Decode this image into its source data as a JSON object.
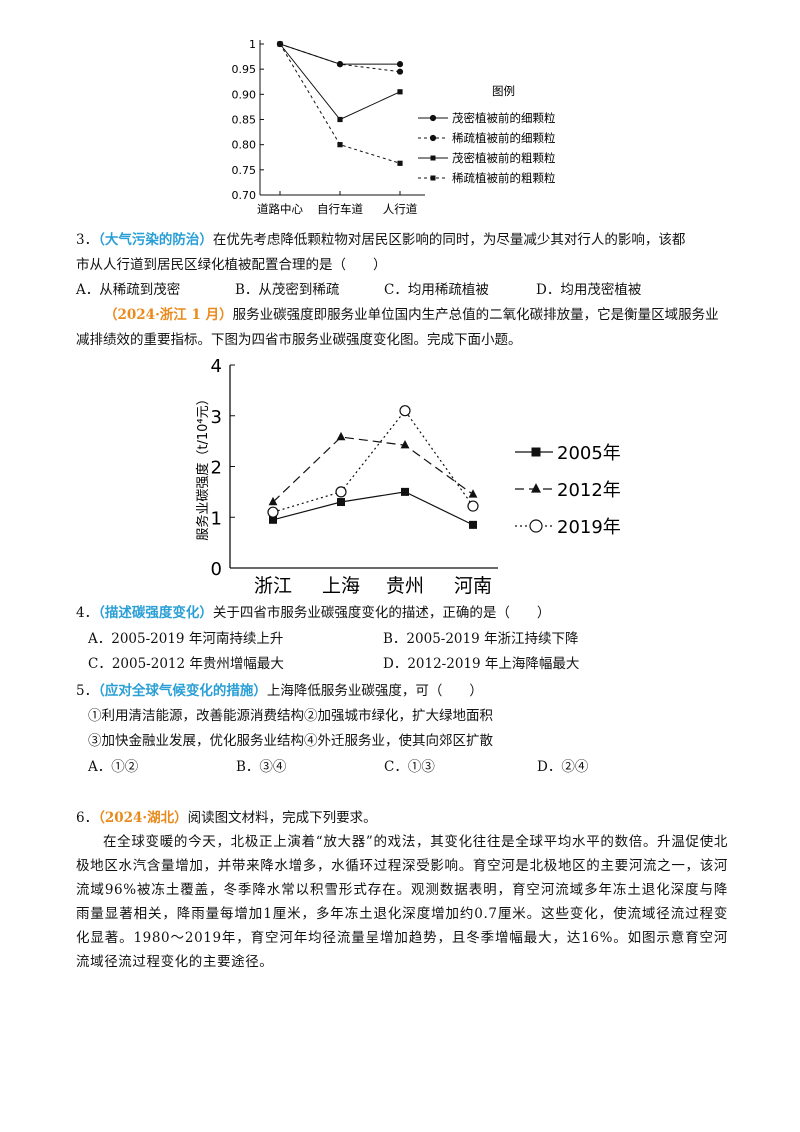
{
  "chart1": {
    "type": "line",
    "categories": [
      "道路中心",
      "自行车道",
      "人行道"
    ],
    "yticks": [
      "0.70",
      "0.75",
      "0.80",
      "0.85",
      "0.90",
      "0.95",
      "1"
    ],
    "ylim": [
      0.7,
      1.0
    ],
    "legend_title": "图例",
    "series": [
      {
        "name": "茂密植被前的细颗粒",
        "values": [
          1.0,
          0.96,
          0.96
        ],
        "dash": false,
        "marker": "circle"
      },
      {
        "name": "稀疏植被前的细颗粒",
        "values": [
          1.0,
          0.96,
          0.945
        ],
        "dash": true,
        "marker": "circle"
      },
      {
        "name": "茂密植被前的粗颗粒",
        "values": [
          1.0,
          0.85,
          0.905
        ],
        "dash": false,
        "marker": "square"
      },
      {
        "name": "稀疏植被前的粗颗粒",
        "values": [
          1.0,
          0.8,
          0.763
        ],
        "dash": true,
        "marker": "square"
      }
    ]
  },
  "q3": {
    "number": "3．",
    "tag": "（大气污染的防治）",
    "line1": "在优先考虑降低颗粒物对居民区影响的同时，为尽量减少其对行人的影响，该都",
    "line2": "市从人行道到居民区绿化植被配置合理的是（　　）",
    "optA": "A．从稀疏到茂密",
    "optB": "B．从茂密到稀疏",
    "optC": "C．均用稀疏植被",
    "optD": "D．均用茂密植被"
  },
  "intro2": {
    "tag": "（2024·浙江 1 月）",
    "line1": "服务业碳强度即服务业单位国内生产总值的二氧化碳排放量，它是衡量区域服务业",
    "line2": "减排绩效的重要指标。下图为四省市服务业碳强度变化图。完成下面小题。"
  },
  "chart_data": {
    "type": "line",
    "categories": [
      "浙江",
      "上海",
      "贵州",
      "河南"
    ],
    "ylabel": "服务业碳强度（t/10⁴元）",
    "ylim": [
      0,
      4
    ],
    "yticks": [
      "0",
      "1",
      "2",
      "3",
      "4"
    ],
    "series": [
      {
        "name": "2005年",
        "values": [
          0.95,
          1.3,
          1.5,
          0.85
        ],
        "style": "solid",
        "marker": "square"
      },
      {
        "name": "2012年",
        "values": [
          1.3,
          2.58,
          2.42,
          1.45
        ],
        "style": "dashed",
        "marker": "triangle"
      },
      {
        "name": "2019年",
        "values": [
          1.1,
          1.5,
          3.1,
          1.22
        ],
        "style": "dotted",
        "marker": "circle"
      }
    ]
  },
  "q4": {
    "number": "4．",
    "tag": "（描述碳强度变化）",
    "stem": "关于四省市服务业碳强度变化的描述，正确的是（　　）",
    "optA": "A．2005-2019 年河南持续上升",
    "optB": "B．2005-2019 年浙江持续下降",
    "optC": "C．2005-2012 年贵州增幅最大",
    "optD": "D．2012-2019 年上海降幅最大"
  },
  "q5": {
    "number": "5．",
    "tag": "（应对全球气候变化的措施）",
    "stem": "上海降低服务业碳强度，可（　　）",
    "item1": "①利用清洁能源，改善能源消费结构②加强城市绿化，扩大绿地面积",
    "item2": "③加快金融业发展，优化服务业结构④外迁服务业，使其向郊区扩散",
    "optA": "A．①②",
    "optB": "B．③④",
    "optC": "C．①③",
    "optD": "D．②④"
  },
  "q6": {
    "number": "6．",
    "tag": "（2024·湖北）",
    "stem": "阅读图文材料，完成下列要求。",
    "paragraph": "在全球变暖的今天，北极正上演着“放大器”的戏法，其变化往往是全球平均水平的数倍。升温促使北极地区水汽含量增加，并带来降水增多，水循环过程深受影响。育空河是北极地区的主要河流之一，该河流域96%被冻土覆盖，冬季降水常以积雪形式存在。观测数据表明，育空河流域多年冻土退化深度与降雨量显著相关，降雨量每增加1厘米，多年冻土退化深度增加约0.7厘米。这些变化，使流域径流过程变化显著。1980～2019年，育空河年均径流量呈增加趋势，且冬季增幅最大，达16%。如图示意育空河流域径流过程变化的主要途径。"
  }
}
